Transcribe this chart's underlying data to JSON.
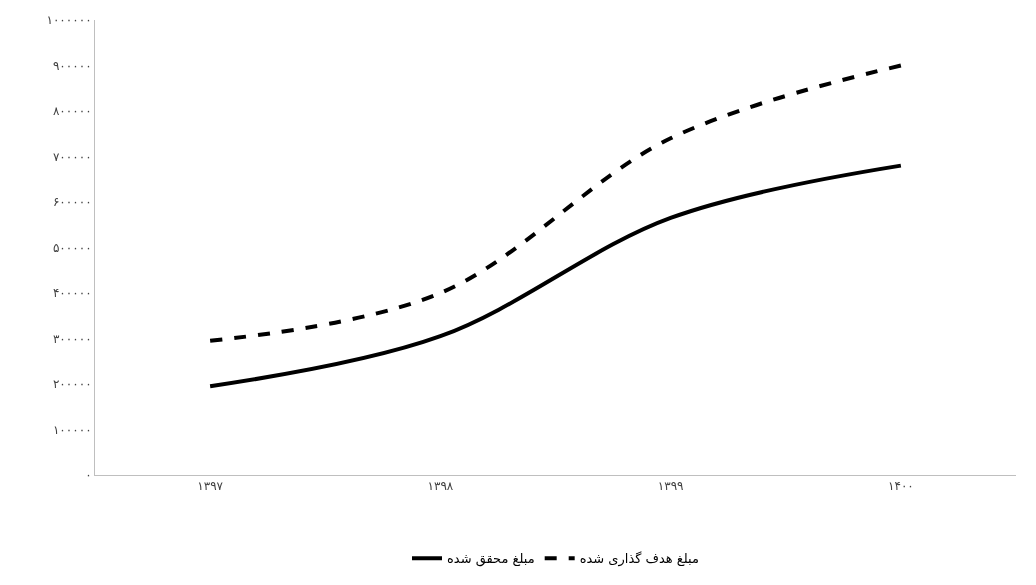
{
  "chart_data": {
    "type": "line",
    "categories": [
      "۱۳۹۷",
      "۱۳۹۸",
      "۱۳۹۹",
      "۱۴۰۰"
    ],
    "series": [
      {
        "name": "مبلغ محقق شده",
        "color": "#000000",
        "values": [
          195000,
          305000,
          565000,
          680000
        ],
        "line_style": "solid"
      },
      {
        "name": "مبلغ هدف گذاری شده",
        "color": "#000000",
        "values": [
          295000,
          400000,
          740000,
          900000
        ],
        "line_style": "dashed"
      }
    ],
    "ylim": [
      0,
      1000000
    ],
    "yticks": [
      {
        "value": 0,
        "label": "۰"
      },
      {
        "value": 100000,
        "label": "۱۰۰۰۰۰"
      },
      {
        "value": 200000,
        "label": "۲۰۰۰۰۰"
      },
      {
        "value": 300000,
        "label": "۳۰۰۰۰۰"
      },
      {
        "value": 400000,
        "label": "۴۰۰۰۰۰"
      },
      {
        "value": 500000,
        "label": "۵۰۰۰۰۰"
      },
      {
        "value": 600000,
        "label": "۶۰۰۰۰۰"
      },
      {
        "value": 700000,
        "label": "۷۰۰۰۰۰"
      },
      {
        "value": 800000,
        "label": "۸۰۰۰۰۰"
      },
      {
        "value": 900000,
        "label": "۹۰۰۰۰۰"
      },
      {
        "value": 1000000,
        "label": "۱۰۰۰۰۰۰"
      }
    ],
    "legend": "bottom",
    "marker": "none"
  }
}
